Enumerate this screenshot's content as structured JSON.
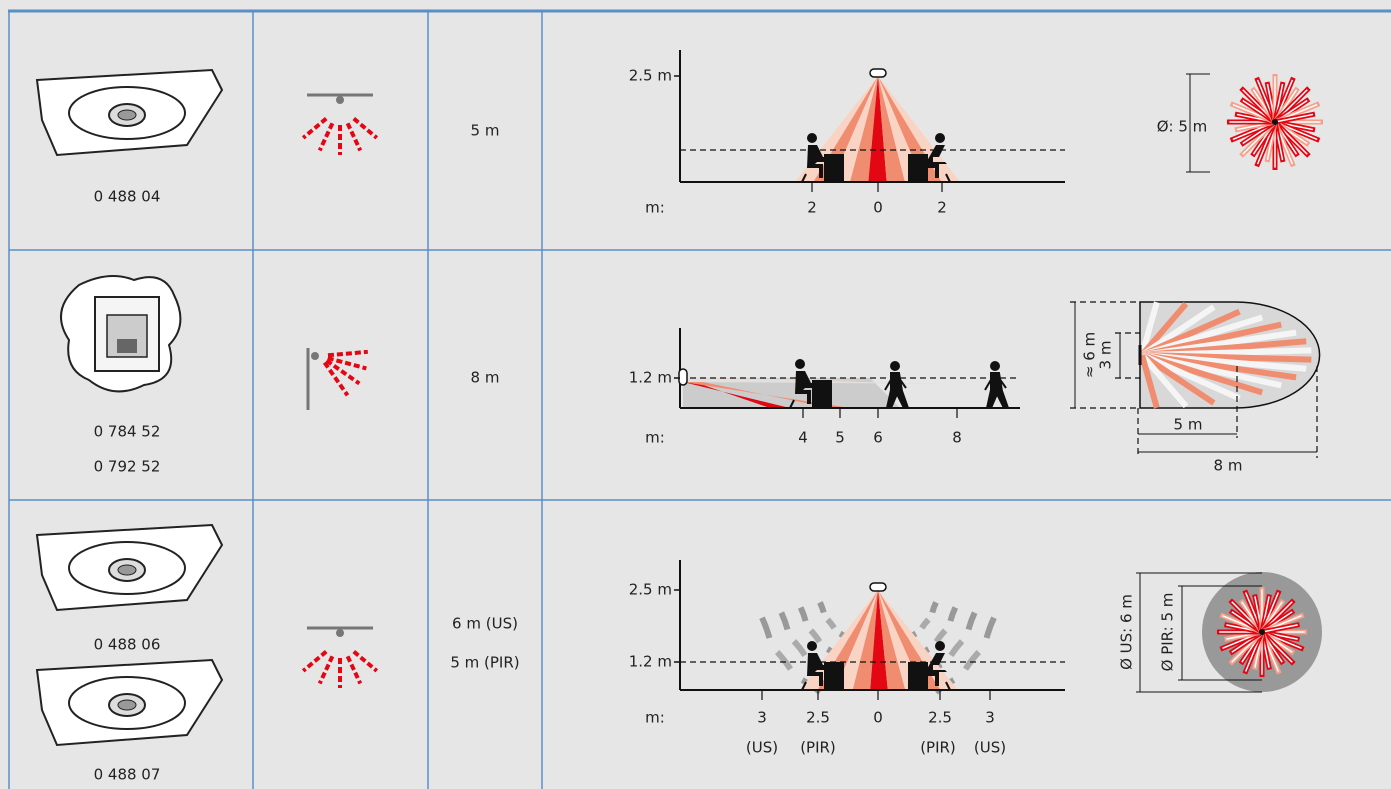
{
  "rows": [
    {
      "products": [
        "0 488 04"
      ],
      "range": [
        "5 m"
      ],
      "side_view": {
        "heights": [
          "2.5 m"
        ],
        "axis_unit": "m:",
        "distances": [
          "2",
          "0",
          "2"
        ],
        "notes": []
      },
      "top_view": {
        "labels": [
          "Ø: 5 m"
        ]
      }
    },
    {
      "products": [
        "0 784 52",
        "0 792 52"
      ],
      "range": [
        "8 m"
      ],
      "side_view": {
        "heights": [
          "1.2 m"
        ],
        "axis_unit": "m:",
        "distances": [
          "4",
          "5",
          "6",
          "8"
        ],
        "notes": []
      },
      "top_view": {
        "labels": [
          "≈ 6 m",
          "3 m",
          "5 m",
          "8 m"
        ]
      }
    },
    {
      "products": [
        "0 488 06",
        "0 488 07"
      ],
      "range": [
        "6 m (US)",
        "5 m (PIR)"
      ],
      "side_view": {
        "heights": [
          "2.5 m",
          "1.2 m"
        ],
        "axis_unit": "m:",
        "distances": [
          "3",
          "2.5",
          "0",
          "2.5",
          "3"
        ],
        "notes": [
          "(US)",
          "(PIR)",
          "(PIR)",
          "(US)"
        ]
      },
      "top_view": {
        "labels": [
          "Ø US: 6 m",
          "Ø PIR: 5 m"
        ]
      }
    }
  ]
}
